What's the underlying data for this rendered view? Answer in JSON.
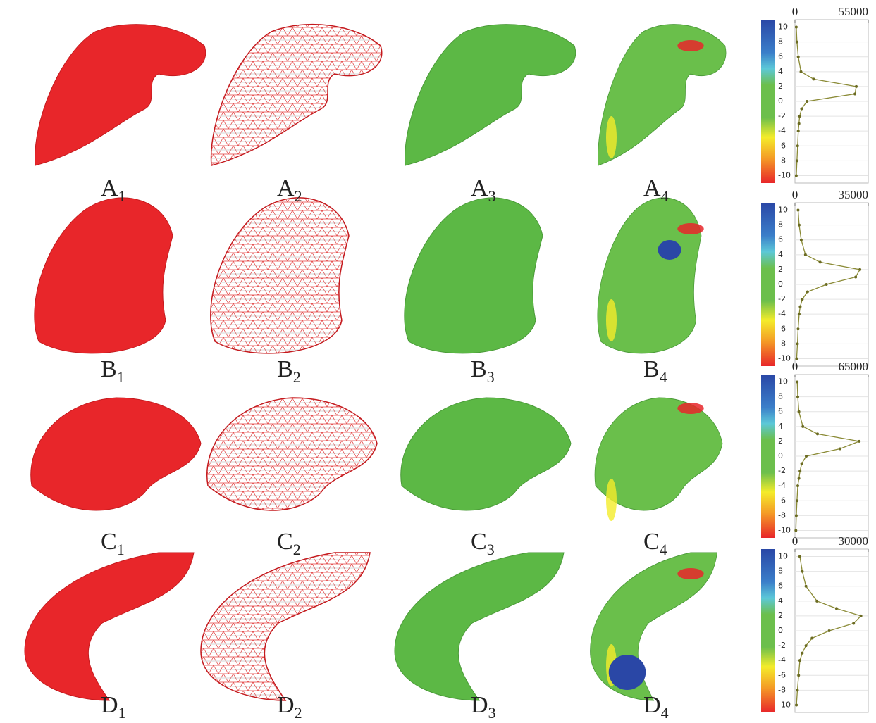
{
  "panels": [
    [
      {
        "letter": "A",
        "index": "1"
      },
      {
        "letter": "A",
        "index": "2"
      },
      {
        "letter": "A",
        "index": "3"
      },
      {
        "letter": "A",
        "index": "4"
      }
    ],
    [
      {
        "letter": "B",
        "index": "1"
      },
      {
        "letter": "B",
        "index": "2"
      },
      {
        "letter": "B",
        "index": "3"
      },
      {
        "letter": "B",
        "index": "4"
      }
    ],
    [
      {
        "letter": "C",
        "index": "1"
      },
      {
        "letter": "C",
        "index": "2"
      },
      {
        "letter": "C",
        "index": "3"
      },
      {
        "letter": "C",
        "index": "4"
      }
    ],
    [
      {
        "letter": "D",
        "index": "1"
      },
      {
        "letter": "D",
        "index": "2"
      },
      {
        "letter": "D",
        "index": "3"
      },
      {
        "letter": "D",
        "index": "4"
      }
    ]
  ],
  "chart_data": [
    {
      "type": "line",
      "y": [
        -10,
        -8,
        -6,
        -4,
        -3,
        -2,
        -1,
        0,
        1,
        2,
        3,
        4,
        6,
        8,
        10
      ],
      "series": [
        {
          "color": "#8a8a35",
          "values": [
            1000,
            1500,
            2000,
            2500,
            3000,
            3500,
            5000,
            9000,
            45000,
            46000,
            14000,
            4500,
            2500,
            1500,
            1000
          ]
        }
      ],
      "xlim": [
        0,
        55000
      ],
      "xticks": [
        0,
        55000
      ],
      "ylim": [
        -11,
        11
      ],
      "yticks": [
        10,
        8,
        6,
        4,
        2,
        0,
        -2,
        -4,
        -6,
        -8,
        -10
      ],
      "grid": true
    },
    {
      "type": "line",
      "y": [
        -10,
        -8,
        -6,
        -4,
        -3,
        -2,
        -1,
        0,
        1,
        2,
        3,
        4,
        6,
        8,
        10
      ],
      "series": [
        {
          "color": "#8a8a35",
          "values": [
            800,
            1200,
            1500,
            2000,
            2500,
            3500,
            6000,
            15000,
            29000,
            31000,
            12000,
            5000,
            3000,
            2000,
            1500
          ]
        }
      ],
      "xlim": [
        0,
        35000
      ],
      "xticks": [
        0,
        35000
      ],
      "ylim": [
        -11,
        11
      ],
      "yticks": [
        10,
        8,
        6,
        4,
        2,
        0,
        -2,
        -4,
        -6,
        -8,
        -10
      ],
      "grid": true
    },
    {
      "type": "line",
      "y": [
        -10,
        -8,
        -6,
        -4,
        -3,
        -2,
        -1,
        0,
        1,
        2,
        3,
        4,
        6,
        8,
        10
      ],
      "series": [
        {
          "color": "#8a8a35",
          "values": [
            800,
            1200,
            1800,
            2500,
            3500,
            4500,
            6000,
            10000,
            40000,
            57000,
            20000,
            7000,
            3500,
            2500,
            2000
          ]
        }
      ],
      "xlim": [
        0,
        65000
      ],
      "xticks": [
        0,
        65000
      ],
      "ylim": [
        -11,
        11
      ],
      "yticks": [
        10,
        8,
        6,
        4,
        2,
        0,
        -2,
        -4,
        -6,
        -8,
        -10
      ],
      "grid": true
    },
    {
      "type": "line",
      "y": [
        -10,
        -8,
        -6,
        -4,
        -3,
        -2,
        -1,
        0,
        1,
        2,
        3,
        4,
        6,
        8,
        10
      ],
      "series": [
        {
          "color": "#8a8a35",
          "values": [
            600,
            1000,
            1500,
            2000,
            3000,
            4500,
            7000,
            14000,
            24000,
            27000,
            17000,
            9000,
            4500,
            3000,
            2000
          ]
        }
      ],
      "xlim": [
        0,
        30000
      ],
      "xticks": [
        0,
        30000
      ],
      "ylim": [
        -11,
        11
      ],
      "yticks": [
        10,
        8,
        6,
        4,
        2,
        0,
        -2,
        -4,
        -6,
        -8,
        -10
      ],
      "grid": true
    }
  ]
}
